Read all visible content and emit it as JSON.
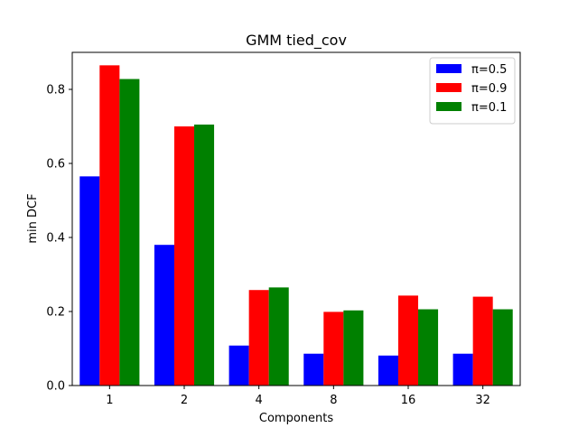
{
  "chart_data": {
    "type": "bar",
    "title": "GMM tied_cov",
    "xlabel": "Components",
    "ylabel": "min DCF",
    "categories": [
      "1",
      "2",
      "4",
      "8",
      "16",
      "32"
    ],
    "ylim": [
      0,
      0.9
    ],
    "yticks": [
      "0.0",
      "0.2",
      "0.4",
      "0.6",
      "0.8"
    ],
    "grid": false,
    "legend_position": "upper right",
    "series": [
      {
        "name": "π=0.5",
        "color": "#0000ff",
        "values": [
          0.565,
          0.38,
          0.108,
          0.086,
          0.081,
          0.086
        ]
      },
      {
        "name": "π=0.9",
        "color": "#ff0000",
        "values": [
          0.865,
          0.7,
          0.258,
          0.199,
          0.243,
          0.24
        ]
      },
      {
        "name": "π=0.1",
        "color": "#008000",
        "values": [
          0.828,
          0.705,
          0.265,
          0.203,
          0.206,
          0.206
        ]
      }
    ]
  }
}
